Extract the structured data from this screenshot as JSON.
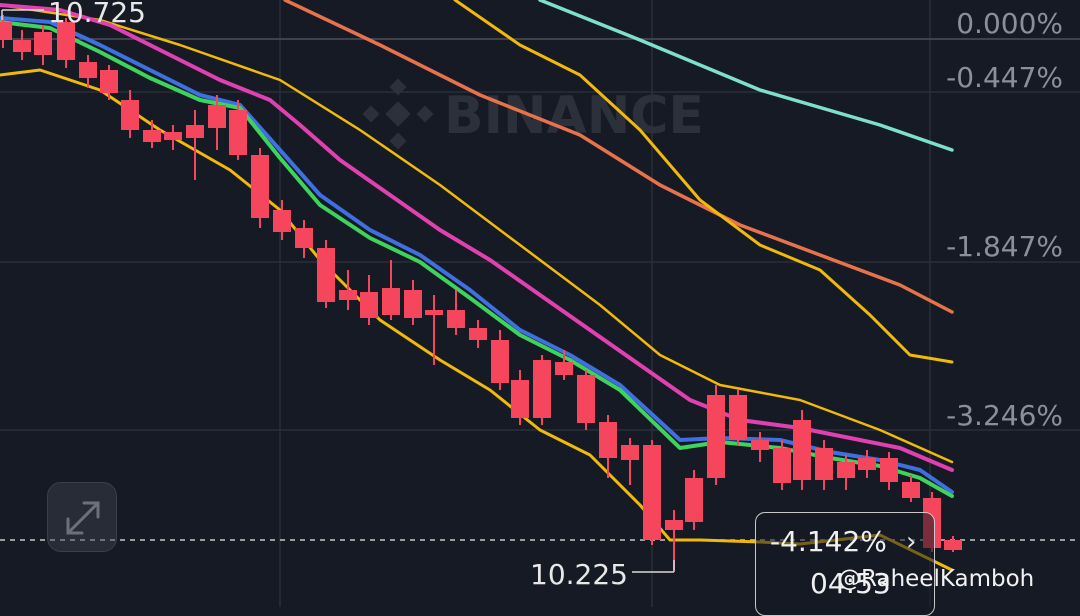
{
  "chart_data": {
    "type": "candlestick",
    "exchange_watermark": "BINANCE",
    "high_label": "10.725",
    "low_label": "10.225",
    "percent_axis": [
      "0.000%",
      "-0.447%",
      "-1.847%",
      "-3.246%"
    ],
    "current_change": "-4.142%",
    "countdown": "04:53",
    "attribution": "@RaheelKamboh",
    "colors": {
      "up": "#2ebd85",
      "down": "#f6465d",
      "ma_magenta": "#e040b0",
      "ma_blue": "#3f6fe0",
      "ma_green": "#3ed35a",
      "band_yellow": "#f0b90b",
      "ma_orange": "#e8734a",
      "ma_teal": "#7de0c8",
      "grid": "#2a2e39",
      "background": "#161a25"
    }
  }
}
